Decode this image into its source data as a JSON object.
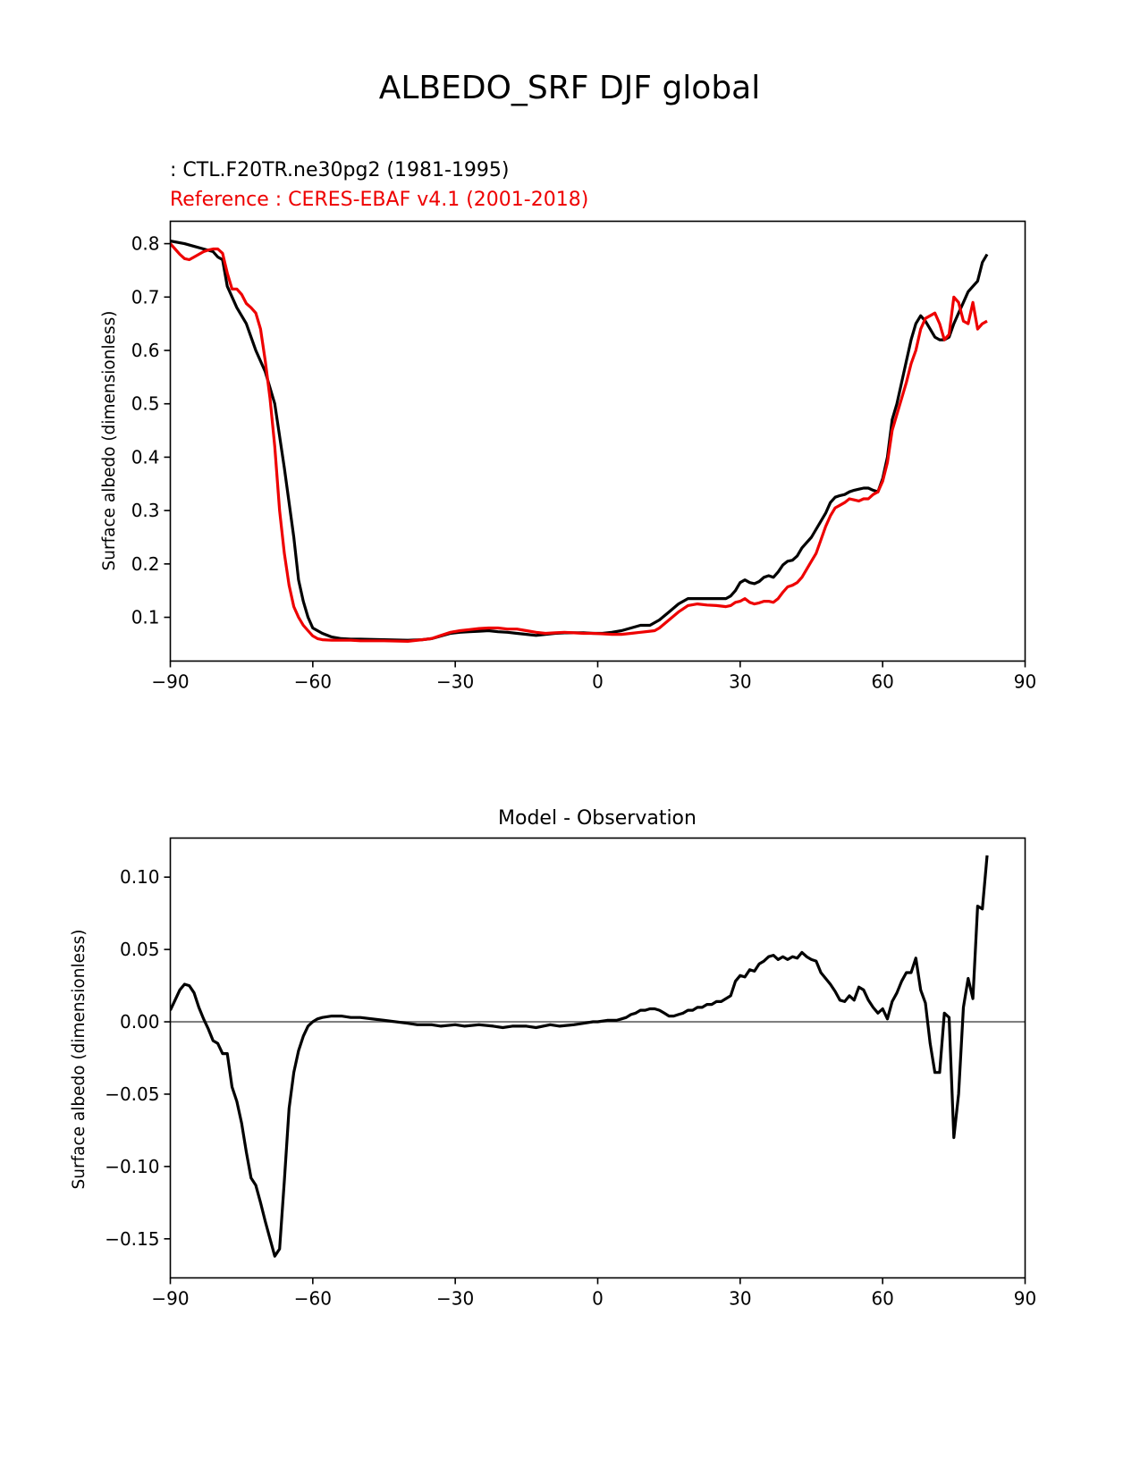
{
  "figure": {
    "title": "ALBEDO_SRF DJF global"
  },
  "chart_data": [
    {
      "type": "line",
      "test_label": " : CTL.F20TR.ne30pg2 (1981-1995)",
      "reference_label": "Reference : CERES-EBAF v4.1 (2001-2018)",
      "ylabel": "Surface albedo (dimensionless)",
      "xlabel": "",
      "xlim": [
        -90,
        90
      ],
      "ylim": [
        0.018,
        0.842
      ],
      "xticks": [
        -90,
        -60,
        -30,
        0,
        30,
        60,
        90
      ],
      "xtick_labels": [
        "−90",
        "−60",
        "−30",
        "0",
        "30",
        "60",
        "90"
      ],
      "yticks": [
        0.1,
        0.2,
        0.3,
        0.4,
        0.5,
        0.6,
        0.7,
        0.8
      ],
      "ytick_labels": [
        "0.1",
        "0.2",
        "0.3",
        "0.4",
        "0.5",
        "0.6",
        "0.7",
        "0.8"
      ],
      "grid": false,
      "series": [
        {
          "color": "#000000",
          "x": [
            -90,
            -87,
            -85,
            -83,
            -81,
            -80,
            -79,
            -78,
            -76,
            -74,
            -72,
            -70,
            -68,
            -66,
            -64,
            -63,
            -62,
            -61,
            -60,
            -58,
            -56,
            -54,
            -52,
            -50,
            -45,
            -40,
            -37,
            -35,
            -33,
            -31,
            -29,
            -27,
            -25,
            -23,
            -21,
            -19,
            -17,
            -15,
            -13,
            -11,
            -9,
            -7,
            -5,
            -3,
            -1,
            1,
            3,
            5,
            7,
            9,
            11,
            12,
            13,
            15,
            17,
            19,
            21,
            23,
            25,
            27,
            28,
            29,
            30,
            31,
            32,
            33,
            34,
            35,
            36,
            37,
            38,
            39,
            40,
            41,
            42,
            43,
            44,
            45,
            46,
            47,
            48,
            49,
            50,
            51,
            52,
            53,
            54,
            55,
            56,
            57,
            58,
            59,
            60,
            61,
            62,
            63,
            64,
            65,
            66,
            67,
            68,
            69,
            70,
            71,
            72,
            73,
            74,
            75,
            76,
            77,
            78,
            79,
            80,
            81,
            82
          ],
          "y": [
            0.805,
            0.8,
            0.795,
            0.79,
            0.785,
            0.775,
            0.77,
            0.72,
            0.68,
            0.65,
            0.6,
            0.56,
            0.5,
            0.38,
            0.25,
            0.17,
            0.13,
            0.1,
            0.08,
            0.07,
            0.063,
            0.06,
            0.059,
            0.059,
            0.058,
            0.057,
            0.058,
            0.06,
            0.065,
            0.07,
            0.072,
            0.073,
            0.074,
            0.075,
            0.073,
            0.072,
            0.07,
            0.068,
            0.066,
            0.068,
            0.07,
            0.071,
            0.071,
            0.071,
            0.07,
            0.07,
            0.072,
            0.075,
            0.08,
            0.085,
            0.085,
            0.09,
            0.095,
            0.11,
            0.125,
            0.135,
            0.135,
            0.135,
            0.135,
            0.135,
            0.14,
            0.15,
            0.165,
            0.17,
            0.165,
            0.163,
            0.167,
            0.175,
            0.178,
            0.175,
            0.185,
            0.198,
            0.205,
            0.207,
            0.215,
            0.23,
            0.24,
            0.25,
            0.265,
            0.28,
            0.295,
            0.315,
            0.325,
            0.328,
            0.33,
            0.335,
            0.338,
            0.34,
            0.342,
            0.342,
            0.338,
            0.335,
            0.36,
            0.4,
            0.47,
            0.5,
            0.54,
            0.58,
            0.62,
            0.65,
            0.665,
            0.655,
            0.64,
            0.625,
            0.62,
            0.62,
            0.625,
            0.65,
            0.67,
            0.69,
            0.71,
            0.72,
            0.73,
            0.765,
            0.78
          ]
        },
        {
          "color": "#ee0000",
          "x": [
            -90,
            -89,
            -88,
            -87,
            -86,
            -85,
            -84,
            -83,
            -82,
            -81,
            -80,
            -79,
            -78,
            -77,
            -76,
            -75,
            -74,
            -73,
            -72,
            -71,
            -70,
            -69,
            -68,
            -67,
            -66,
            -65,
            -64,
            -63,
            -62,
            -61,
            -60,
            -59,
            -58,
            -56,
            -54,
            -52,
            -50,
            -45,
            -40,
            -37,
            -35,
            -33,
            -31,
            -29,
            -27,
            -25,
            -23,
            -21,
            -19,
            -17,
            -15,
            -13,
            -11,
            -9,
            -7,
            -5,
            -3,
            -1,
            1,
            3,
            5,
            7,
            9,
            11,
            12,
            13,
            15,
            17,
            19,
            21,
            23,
            25,
            27,
            28,
            29,
            30,
            31,
            32,
            33,
            34,
            35,
            36,
            37,
            38,
            39,
            40,
            41,
            42,
            43,
            44,
            45,
            46,
            47,
            48,
            49,
            50,
            51,
            52,
            53,
            54,
            55,
            56,
            57,
            58,
            59,
            60,
            61,
            62,
            63,
            64,
            65,
            66,
            67,
            68,
            69,
            70,
            71,
            72,
            73,
            74,
            75,
            76,
            77,
            78,
            79,
            80,
            81,
            82
          ],
          "y": [
            0.8,
            0.79,
            0.78,
            0.772,
            0.77,
            0.775,
            0.78,
            0.785,
            0.788,
            0.79,
            0.79,
            0.782,
            0.745,
            0.715,
            0.715,
            0.705,
            0.688,
            0.68,
            0.67,
            0.64,
            0.58,
            0.51,
            0.42,
            0.3,
            0.22,
            0.16,
            0.12,
            0.1,
            0.085,
            0.075,
            0.065,
            0.06,
            0.058,
            0.057,
            0.057,
            0.057,
            0.056,
            0.056,
            0.055,
            0.058,
            0.06,
            0.066,
            0.072,
            0.075,
            0.077,
            0.079,
            0.08,
            0.08,
            0.078,
            0.078,
            0.075,
            0.072,
            0.07,
            0.071,
            0.072,
            0.071,
            0.07,
            0.07,
            0.069,
            0.068,
            0.068,
            0.07,
            0.072,
            0.074,
            0.075,
            0.08,
            0.095,
            0.11,
            0.122,
            0.125,
            0.123,
            0.122,
            0.12,
            0.122,
            0.128,
            0.13,
            0.135,
            0.128,
            0.125,
            0.127,
            0.13,
            0.13,
            0.128,
            0.135,
            0.147,
            0.157,
            0.16,
            0.165,
            0.175,
            0.19,
            0.205,
            0.22,
            0.245,
            0.27,
            0.29,
            0.305,
            0.31,
            0.315,
            0.322,
            0.32,
            0.318,
            0.322,
            0.322,
            0.33,
            0.335,
            0.355,
            0.39,
            0.45,
            0.48,
            0.51,
            0.54,
            0.575,
            0.6,
            0.64,
            0.66,
            0.665,
            0.67,
            0.65,
            0.62,
            0.63,
            0.7,
            0.69,
            0.655,
            0.65,
            0.69,
            0.64,
            0.65,
            0.655
          ]
        }
      ]
    },
    {
      "type": "line",
      "title": "Model - Observation",
      "ylabel": "Surface albedo (dimensionless)",
      "xlabel": "",
      "xlim": [
        -90,
        90
      ],
      "ylim": [
        -0.177,
        0.127
      ],
      "xticks": [
        -90,
        -60,
        -30,
        0,
        30,
        60,
        90
      ],
      "xtick_labels": [
        "−90",
        "−60",
        "−30",
        "0",
        "30",
        "60",
        "90"
      ],
      "yticks": [
        0.1,
        0.05,
        0.0,
        -0.05,
        -0.1,
        -0.15
      ],
      "ytick_labels": [
        "0.10",
        "0.05",
        "0.00",
        "−0.05",
        "−0.10",
        "−0.15"
      ],
      "grid": false,
      "zero_line_color": "#808080",
      "series": [
        {
          "color": "#000000",
          "x": [
            -90,
            -89,
            -88,
            -87,
            -86,
            -85,
            -84,
            -83,
            -82,
            -81,
            -80,
            -79,
            -78,
            -77,
            -76,
            -75,
            -74,
            -73,
            -72,
            -71,
            -70,
            -69,
            -68,
            -67,
            -66,
            -65,
            -64,
            -63,
            -62,
            -61,
            -60,
            -59,
            -58,
            -56,
            -54,
            -52,
            -50,
            -45,
            -40,
            -38,
            -35,
            -33,
            -30,
            -28,
            -25,
            -22,
            -20,
            -18,
            -15,
            -13,
            -10,
            -8,
            -5,
            -3,
            -1,
            0,
            2,
            4,
            5,
            6,
            7,
            8,
            9,
            10,
            11,
            12,
            13,
            14,
            15,
            16,
            17,
            18,
            19,
            20,
            21,
            22,
            23,
            24,
            25,
            26,
            27,
            28,
            29,
            30,
            31,
            32,
            33,
            34,
            35,
            36,
            37,
            38,
            39,
            40,
            41,
            42,
            43,
            44,
            45,
            46,
            47,
            48,
            49,
            50,
            51,
            52,
            53,
            54,
            55,
            56,
            57,
            58,
            59,
            60,
            61,
            62,
            63,
            64,
            65,
            66,
            67,
            68,
            69,
            70,
            71,
            72,
            73,
            74,
            75,
            76,
            77,
            78,
            79,
            80,
            81,
            82
          ],
          "y": [
            0.008,
            0.015,
            0.022,
            0.026,
            0.025,
            0.02,
            0.01,
            0.002,
            -0.005,
            -0.013,
            -0.015,
            -0.022,
            -0.022,
            -0.045,
            -0.055,
            -0.07,
            -0.09,
            -0.108,
            -0.113,
            -0.125,
            -0.138,
            -0.15,
            -0.162,
            -0.157,
            -0.11,
            -0.06,
            -0.035,
            -0.02,
            -0.01,
            -0.003,
            0.0,
            0.002,
            0.003,
            0.004,
            0.004,
            0.003,
            0.003,
            0.001,
            -0.001,
            -0.002,
            -0.002,
            -0.003,
            -0.002,
            -0.003,
            -0.002,
            -0.003,
            -0.004,
            -0.003,
            -0.003,
            -0.004,
            -0.002,
            -0.003,
            -0.002,
            -0.001,
            0.0,
            0.0,
            0.001,
            0.001,
            0.002,
            0.003,
            0.005,
            0.006,
            0.008,
            0.008,
            0.009,
            0.009,
            0.008,
            0.006,
            0.004,
            0.004,
            0.005,
            0.006,
            0.008,
            0.008,
            0.01,
            0.01,
            0.012,
            0.012,
            0.014,
            0.014,
            0.016,
            0.018,
            0.028,
            0.032,
            0.031,
            0.036,
            0.035,
            0.04,
            0.042,
            0.045,
            0.046,
            0.043,
            0.045,
            0.043,
            0.045,
            0.044,
            0.048,
            0.045,
            0.043,
            0.042,
            0.034,
            0.03,
            0.026,
            0.021,
            0.015,
            0.014,
            0.018,
            0.015,
            0.024,
            0.022,
            0.015,
            0.01,
            0.006,
            0.009,
            0.002,
            0.014,
            0.02,
            0.028,
            0.034,
            0.034,
            0.044,
            0.022,
            0.013,
            -0.015,
            -0.035,
            -0.035,
            0.006,
            0.003,
            -0.08,
            -0.05,
            0.01,
            0.03,
            0.016,
            0.08,
            0.078,
            0.115
          ]
        }
      ]
    }
  ]
}
